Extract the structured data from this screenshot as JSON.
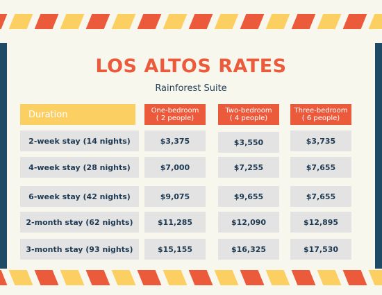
{
  "title": "LOS ALTOS RATES",
  "subtitle": "Rainforest Suite",
  "headers": {
    "duration": "Duration",
    "col1_line1": "One-bedroom",
    "col1_line2": "( 2 people)",
    "col2_line1": "Two-bedroom",
    "col2_line2": "( 4 people)",
    "col3_line1": "Three-bedroom",
    "col3_line2": "( 6 people)"
  },
  "rows": [
    {
      "label": "2-week stay (14 nights)",
      "one": "$3,375",
      "two": "$3,550",
      "three": "$3,735"
    },
    {
      "label": "4-week stay (28 nights)",
      "one": "$7,000",
      "two": "$7,255",
      "three": "$7,655"
    },
    {
      "label": "6-week stay (42 nights)",
      "one": "$9,075",
      "two": "$9,655",
      "three": "$7,655"
    },
    {
      "label": "2-month stay (62 nights)",
      "one": "$11,285",
      "two": "$12,090",
      "three": "$12,895"
    },
    {
      "label": "3-month stay (93 nights)",
      "one": "$15,155",
      "two": "$16,325",
      "three": "$17,530"
    }
  ],
  "colors": {
    "stripe_red": "#ec5a3c",
    "stripe_yellow": "#fccf63",
    "navy": "#1e4a66",
    "background": "#f8f7ee"
  }
}
